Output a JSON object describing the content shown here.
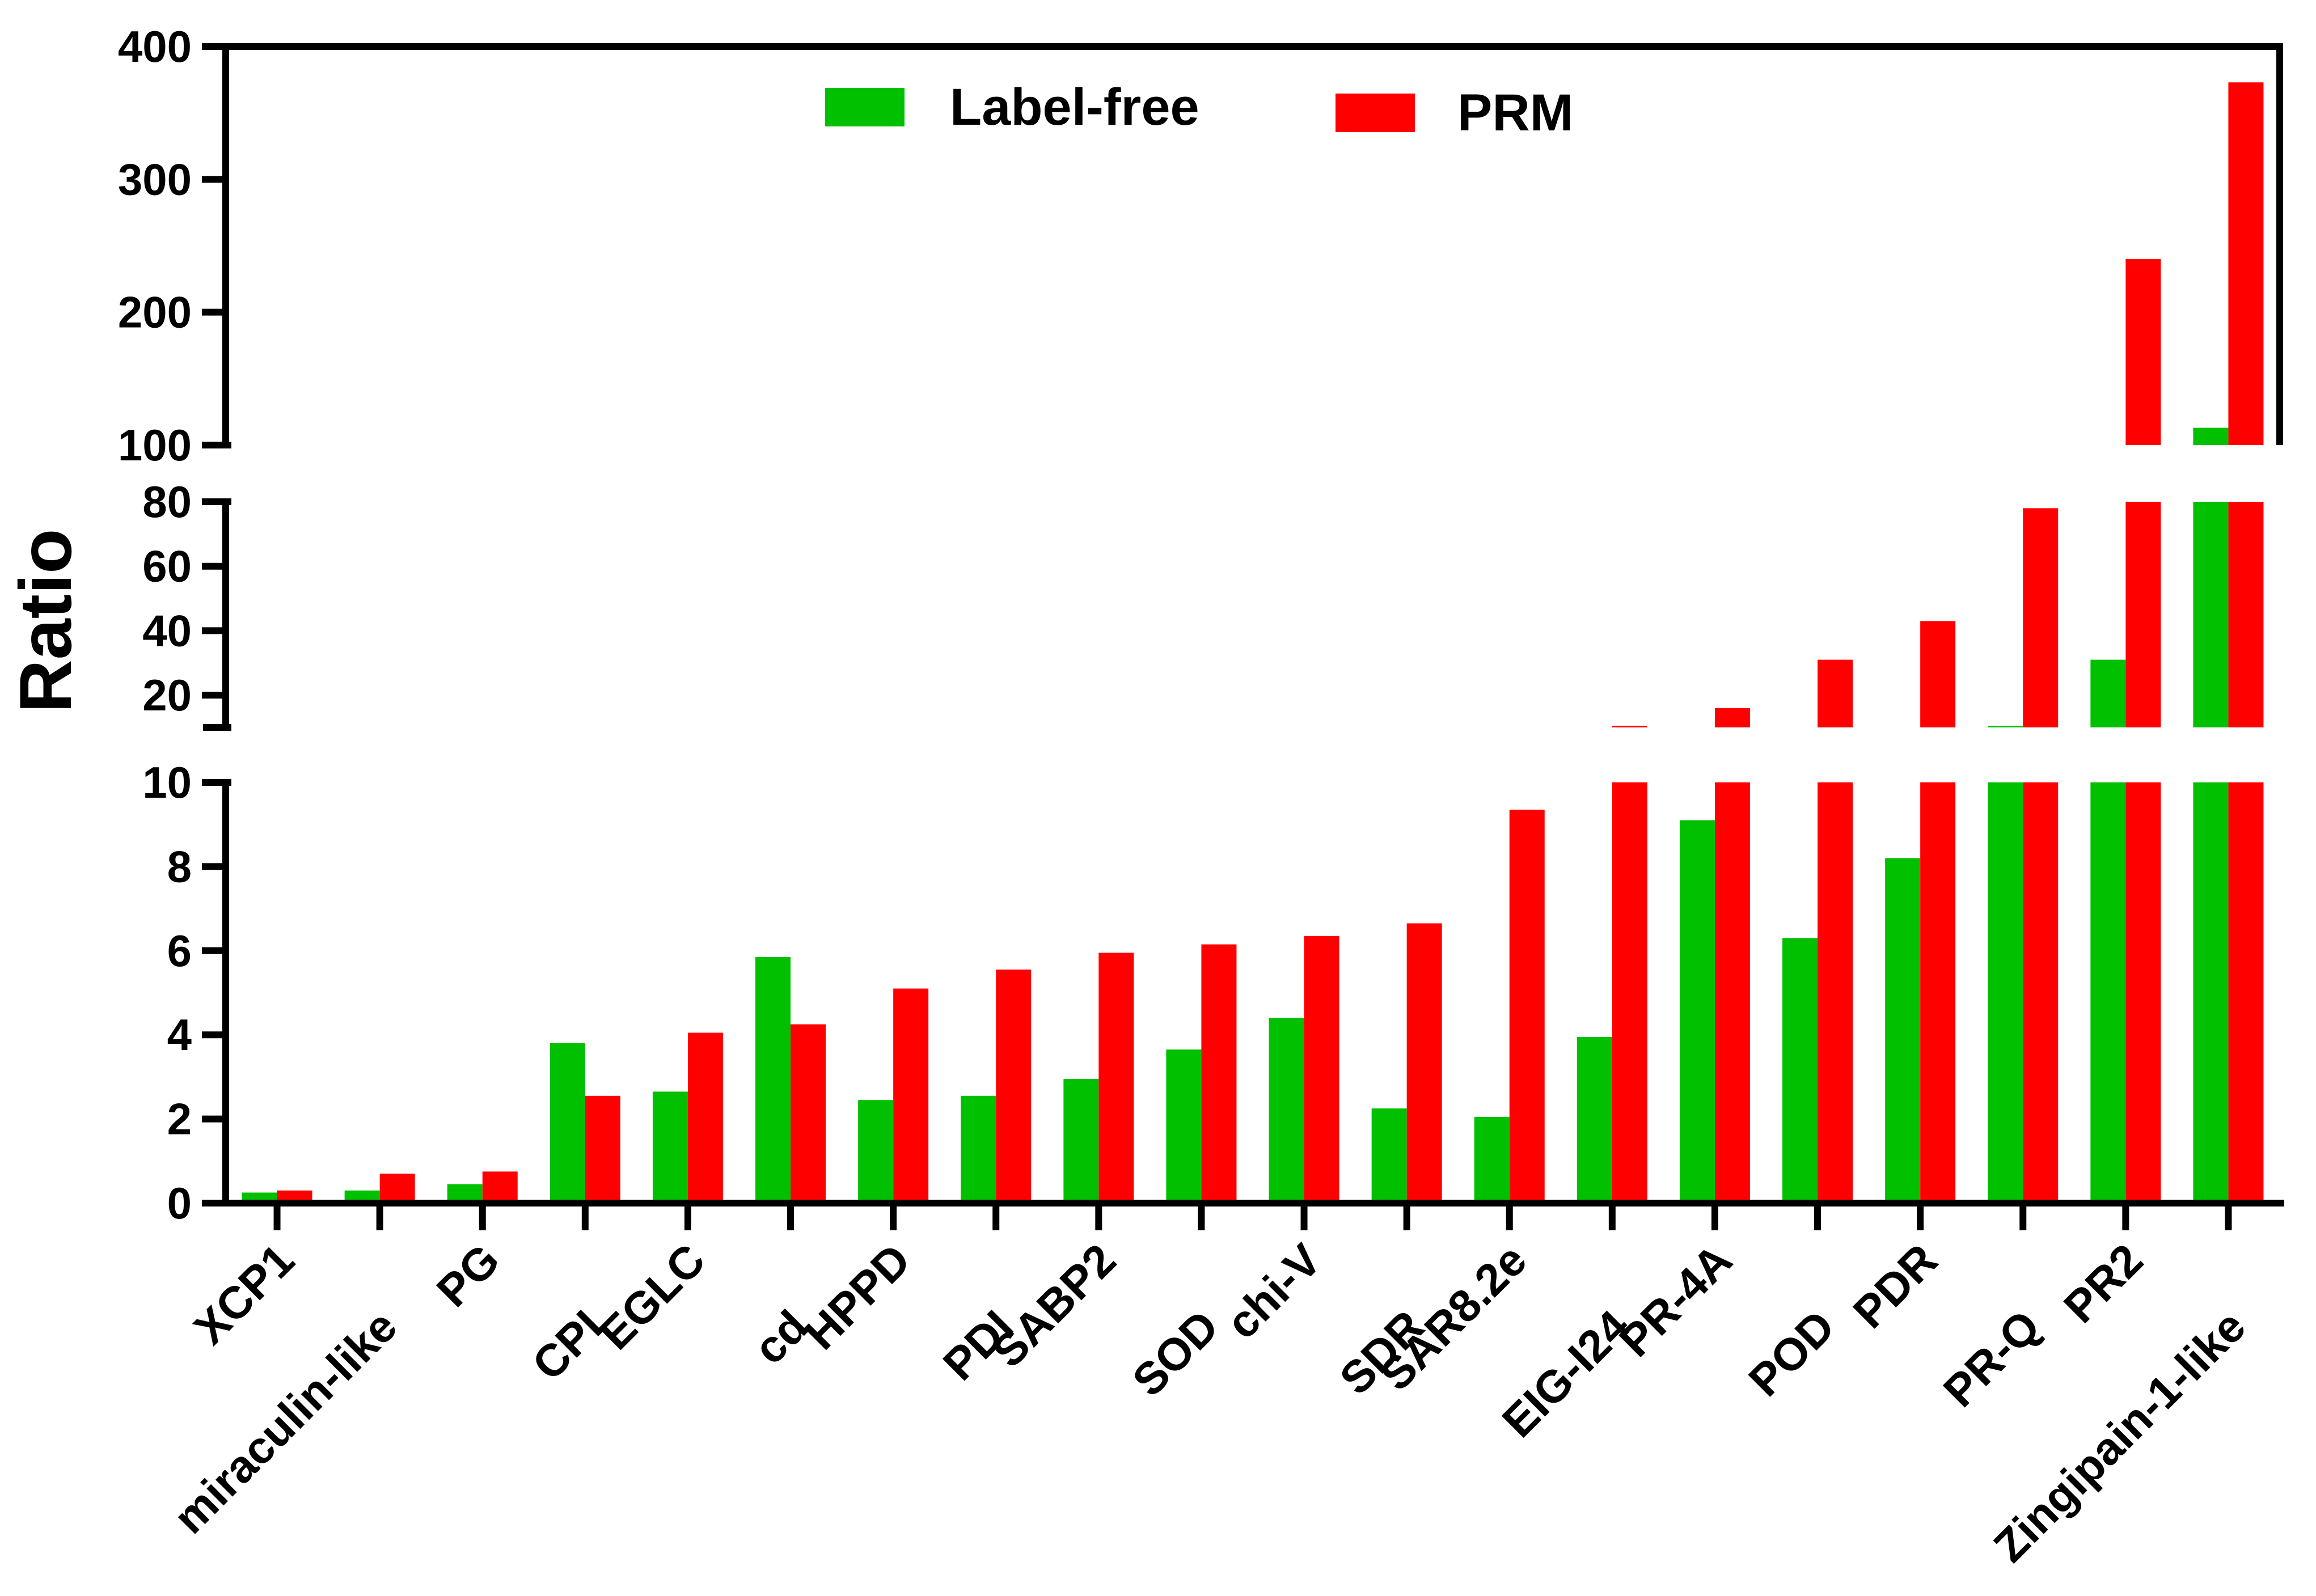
{
  "chart_data": {
    "type": "bar",
    "title": "",
    "xlabel": "",
    "ylabel": "Ratio",
    "categories": [
      "XCP1",
      "miraculin-like",
      "PG",
      "CPI",
      "EGLC",
      "cd",
      "HPPD",
      "PDI",
      "SABP2",
      "SOD",
      "chi-V",
      "SDR",
      "SAR8.2e",
      "EIG-I24",
      "PR-4A",
      "POD",
      "PDR",
      "PR-Q",
      "PR2",
      "Zingipain-1-like"
    ],
    "series": [
      {
        "name": "Label-free",
        "color": "#00c000",
        "values": [
          0.25,
          0.3,
          0.45,
          3.8,
          2.65,
          5.85,
          2.45,
          2.55,
          2.95,
          3.65,
          4.4,
          2.25,
          2.05,
          3.95,
          9.1,
          6.3,
          8.2,
          10.5,
          31,
          113
        ]
      },
      {
        "name": "PRM",
        "color": "#ff0000",
        "values": [
          0.3,
          0.7,
          0.75,
          2.55,
          4.05,
          4.25,
          5.1,
          5.55,
          5.95,
          6.15,
          6.35,
          6.65,
          9.35,
          10.5,
          16,
          31,
          43,
          78,
          240,
          373
        ]
      }
    ],
    "y_axis_segments": [
      {
        "range": [
          0,
          10
        ],
        "ticks": [
          0,
          2,
          4,
          6,
          8,
          10
        ]
      },
      {
        "range": [
          10,
          80
        ],
        "ticks": [
          20,
          40,
          60,
          80
        ]
      },
      {
        "range": [
          100,
          400
        ],
        "ticks": [
          100,
          200,
          300,
          400
        ]
      }
    ],
    "legend_position": "top-center",
    "grid": false
  }
}
